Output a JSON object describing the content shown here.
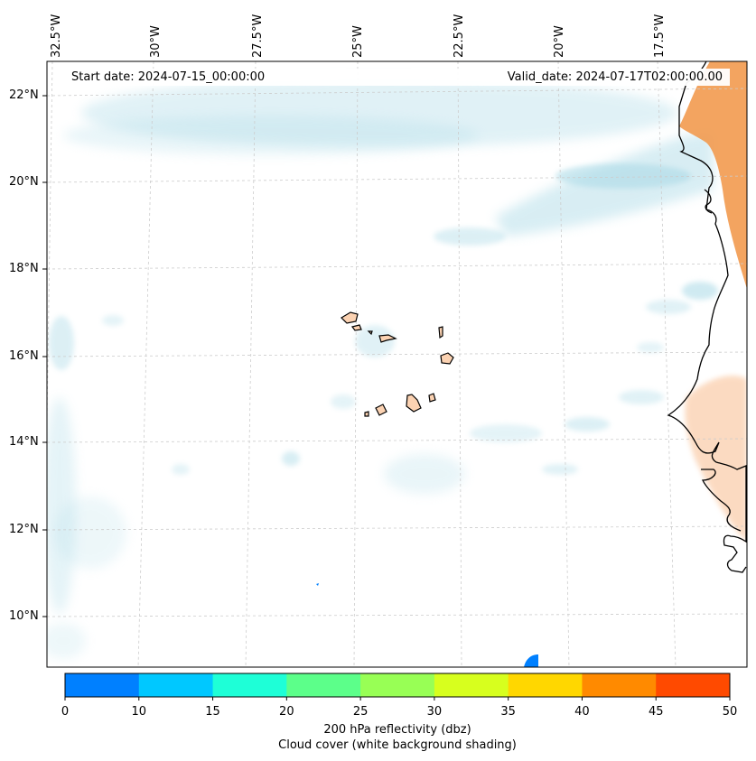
{
  "map": {
    "longitude_labels": [
      "32.5°W",
      "30°W",
      "27.5°W",
      "25°W",
      "22.5°W",
      "20°W",
      "17.5°W"
    ],
    "latitude_labels": [
      "22°N",
      "20°N",
      "18°N",
      "16°N",
      "14°N",
      "12°N",
      "10°N"
    ],
    "start_date": "Start date: 2024-07-15_00:00:00",
    "valid_date": "Valid_date: 2024-07-17T02:00:00.00"
  },
  "colorbar": {
    "ticks": [
      "0",
      "10",
      "15",
      "20",
      "25",
      "30",
      "35",
      "40",
      "45",
      "50"
    ],
    "colors": [
      "#0080ff",
      "#00c8ff",
      "#1effd7",
      "#5cff8a",
      "#98ff55",
      "#d7ff1e",
      "#ffd700",
      "#ff8a00",
      "#ff4a00"
    ],
    "title": "200 hPa reflectivity (dbz)",
    "subtitle": "Cloud cover (white background shading)"
  },
  "colors": {
    "cloud": "#a9d9e6",
    "land_heat": "#f29a4f",
    "land_light": "#fbd2b2",
    "coast": "#000000",
    "grid": "#cccccc"
  }
}
